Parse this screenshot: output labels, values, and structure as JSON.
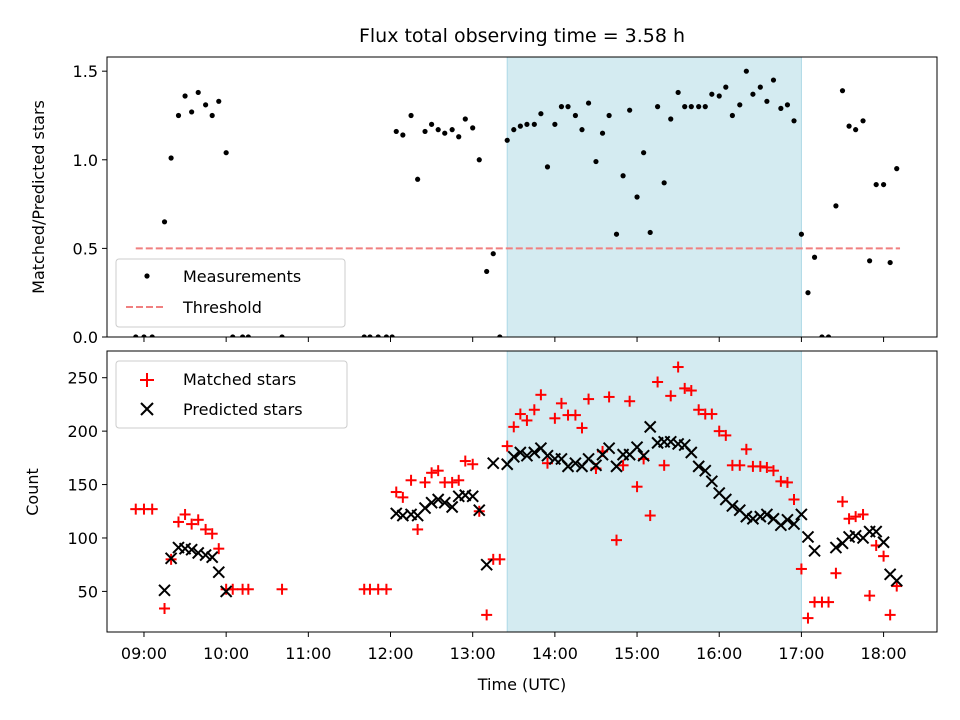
{
  "chart_data": {
    "type": "scatter",
    "title": "Flux total observing time = 3.58 h",
    "xlabel": "Time (UTC)",
    "x_tick_labels": [
      "09:00",
      "10:00",
      "11:00",
      "12:00",
      "13:00",
      "14:00",
      "15:00",
      "16:00",
      "17:00",
      "18:00"
    ],
    "x_tick_hours": [
      9,
      10,
      11,
      12,
      13,
      14,
      15,
      16,
      17,
      18
    ],
    "xlim": [
      8.55,
      18.65
    ],
    "highlight_span": [
      13.42,
      17.0
    ],
    "colors": {
      "highlight": "#d4ebf1",
      "threshold": "#f08080",
      "matched": "#ff0000",
      "predicted": "#000000",
      "measurement": "#000000"
    },
    "top": {
      "ylabel": "Matched/Predicted stars",
      "ylim": [
        0,
        1.58
      ],
      "y_ticks": [
        0.0,
        0.5,
        1.0,
        1.5
      ],
      "y_tick_labels": [
        "0.0",
        "0.5",
        "1.0",
        "1.5"
      ],
      "threshold": {
        "value": 0.5,
        "x_range": [
          8.9,
          18.2
        ]
      },
      "legend": {
        "position": "lower-left",
        "measurements_label": "Measurements",
        "threshold_label": "Threshold"
      },
      "measurements": [
        [
          8.9,
          0
        ],
        [
          9.0,
          0
        ],
        [
          9.1,
          0
        ],
        [
          9.25,
          0.65
        ],
        [
          9.33,
          1.01
        ],
        [
          9.42,
          1.25
        ],
        [
          9.5,
          1.36
        ],
        [
          9.58,
          1.27
        ],
        [
          9.66,
          1.38
        ],
        [
          9.75,
          1.31
        ],
        [
          9.83,
          1.25
        ],
        [
          9.91,
          1.33
        ],
        [
          10.0,
          1.04
        ],
        [
          10.08,
          0
        ],
        [
          10.2,
          0
        ],
        [
          10.27,
          0
        ],
        [
          10.68,
          0
        ],
        [
          11.68,
          0
        ],
        [
          11.75,
          0
        ],
        [
          11.85,
          0
        ],
        [
          11.95,
          0
        ],
        [
          12.02,
          0
        ],
        [
          12.07,
          1.16
        ],
        [
          12.15,
          1.14
        ],
        [
          12.25,
          1.25
        ],
        [
          12.33,
          0.89
        ],
        [
          12.42,
          1.16
        ],
        [
          12.5,
          1.2
        ],
        [
          12.58,
          1.17
        ],
        [
          12.66,
          1.15
        ],
        [
          12.75,
          1.17
        ],
        [
          12.83,
          1.13
        ],
        [
          12.91,
          1.23
        ],
        [
          13.0,
          1.18
        ],
        [
          13.08,
          1.0
        ],
        [
          13.17,
          0.37
        ],
        [
          13.25,
          0.47
        ],
        [
          13.33,
          0
        ],
        [
          13.42,
          1.11
        ],
        [
          13.5,
          1.17
        ],
        [
          13.58,
          1.19
        ],
        [
          13.66,
          1.2
        ],
        [
          13.75,
          1.2
        ],
        [
          13.83,
          1.26
        ],
        [
          13.91,
          0.96
        ],
        [
          14.0,
          1.2
        ],
        [
          14.08,
          1.3
        ],
        [
          14.16,
          1.3
        ],
        [
          14.25,
          1.25
        ],
        [
          14.33,
          1.17
        ],
        [
          14.41,
          1.32
        ],
        [
          14.5,
          0.99
        ],
        [
          14.58,
          1.15
        ],
        [
          14.66,
          1.25
        ],
        [
          14.75,
          0.58
        ],
        [
          14.83,
          0.91
        ],
        [
          14.91,
          1.28
        ],
        [
          15.0,
          0.79
        ],
        [
          15.08,
          1.04
        ],
        [
          15.16,
          0.59
        ],
        [
          15.25,
          1.3
        ],
        [
          15.33,
          0.87
        ],
        [
          15.41,
          1.23
        ],
        [
          15.5,
          1.38
        ],
        [
          15.58,
          1.3
        ],
        [
          15.66,
          1.3
        ],
        [
          15.75,
          1.3
        ],
        [
          15.83,
          1.3
        ],
        [
          15.91,
          1.37
        ],
        [
          16.0,
          1.36
        ],
        [
          16.08,
          1.41
        ],
        [
          16.16,
          1.25
        ],
        [
          16.25,
          1.31
        ],
        [
          16.33,
          1.5
        ],
        [
          16.41,
          1.37
        ],
        [
          16.5,
          1.41
        ],
        [
          16.58,
          1.33
        ],
        [
          16.66,
          1.45
        ],
        [
          16.75,
          1.29
        ],
        [
          16.83,
          1.31
        ],
        [
          16.91,
          1.22
        ],
        [
          17.0,
          0.58
        ],
        [
          17.08,
          0.25
        ],
        [
          17.16,
          0.45
        ],
        [
          17.25,
          0
        ],
        [
          17.33,
          0
        ],
        [
          17.42,
          0.74
        ],
        [
          17.5,
          1.39
        ],
        [
          17.58,
          1.19
        ],
        [
          17.66,
          1.17
        ],
        [
          17.75,
          1.22
        ],
        [
          17.83,
          0.43
        ],
        [
          17.91,
          0.86
        ],
        [
          18.0,
          0.86
        ],
        [
          18.08,
          0.42
        ],
        [
          18.16,
          0.95
        ]
      ]
    },
    "bottom": {
      "ylabel": "Count",
      "ylim": [
        12,
        275
      ],
      "y_ticks": [
        50,
        100,
        150,
        200,
        250
      ],
      "y_tick_labels": [
        "50",
        "100",
        "150",
        "200",
        "250"
      ],
      "legend": {
        "position": "upper-left",
        "matched_label": "Matched stars",
        "predicted_label": "Predicted stars"
      },
      "matched": [
        [
          8.9,
          127
        ],
        [
          9.0,
          127
        ],
        [
          9.1,
          127
        ],
        [
          9.25,
          34
        ],
        [
          9.33,
          80
        ],
        [
          9.42,
          115
        ],
        [
          9.5,
          122
        ],
        [
          9.58,
          113
        ],
        [
          9.66,
          117
        ],
        [
          9.75,
          108
        ],
        [
          9.83,
          104
        ],
        [
          9.91,
          90
        ],
        [
          10.0,
          52
        ],
        [
          10.08,
          52
        ],
        [
          10.2,
          52
        ],
        [
          10.27,
          52
        ],
        [
          10.68,
          52
        ],
        [
          11.68,
          52
        ],
        [
          11.75,
          52
        ],
        [
          11.85,
          52
        ],
        [
          11.95,
          52
        ],
        [
          12.07,
          143
        ],
        [
          12.15,
          138
        ],
        [
          12.25,
          154
        ],
        [
          12.33,
          108
        ],
        [
          12.42,
          152
        ],
        [
          12.5,
          161
        ],
        [
          12.58,
          163
        ],
        [
          12.66,
          152
        ],
        [
          12.75,
          152
        ],
        [
          12.83,
          154
        ],
        [
          12.91,
          172
        ],
        [
          13.0,
          169
        ],
        [
          13.08,
          125
        ],
        [
          13.17,
          28
        ],
        [
          13.25,
          80
        ],
        [
          13.33,
          80
        ],
        [
          13.42,
          186
        ],
        [
          13.5,
          204
        ],
        [
          13.58,
          216
        ],
        [
          13.66,
          210
        ],
        [
          13.75,
          220
        ],
        [
          13.83,
          234
        ],
        [
          13.91,
          170
        ],
        [
          14.0,
          212
        ],
        [
          14.08,
          226
        ],
        [
          14.16,
          215
        ],
        [
          14.25,
          215
        ],
        [
          14.33,
          203
        ],
        [
          14.41,
          230
        ],
        [
          14.5,
          165
        ],
        [
          14.58,
          181
        ],
        [
          14.66,
          232
        ],
        [
          14.75,
          98
        ],
        [
          14.83,
          168
        ],
        [
          14.91,
          228
        ],
        [
          15.0,
          148
        ],
        [
          15.08,
          174
        ],
        [
          15.16,
          121
        ],
        [
          15.25,
          246
        ],
        [
          15.33,
          168
        ],
        [
          15.41,
          233
        ],
        [
          15.5,
          260
        ],
        [
          15.58,
          240
        ],
        [
          15.66,
          238
        ],
        [
          15.75,
          220
        ],
        [
          15.83,
          216
        ],
        [
          15.91,
          216
        ],
        [
          16.0,
          200
        ],
        [
          16.08,
          196
        ],
        [
          16.16,
          168
        ],
        [
          16.25,
          168
        ],
        [
          16.33,
          183
        ],
        [
          16.41,
          167
        ],
        [
          16.5,
          167
        ],
        [
          16.58,
          166
        ],
        [
          16.66,
          163
        ],
        [
          16.75,
          153
        ],
        [
          16.83,
          152
        ],
        [
          16.91,
          136
        ],
        [
          17.0,
          71
        ],
        [
          17.08,
          25
        ],
        [
          17.16,
          40
        ],
        [
          17.25,
          40
        ],
        [
          17.33,
          40
        ],
        [
          17.42,
          67
        ],
        [
          17.5,
          134
        ],
        [
          17.58,
          118
        ],
        [
          17.66,
          120
        ],
        [
          17.75,
          122
        ],
        [
          17.83,
          46
        ],
        [
          17.91,
          93
        ],
        [
          18.0,
          83
        ],
        [
          18.08,
          28
        ],
        [
          18.16,
          55
        ]
      ],
      "predicted": [
        [
          9.25,
          51
        ],
        [
          9.33,
          81
        ],
        [
          9.42,
          91
        ],
        [
          9.5,
          90
        ],
        [
          9.58,
          89
        ],
        [
          9.66,
          86
        ],
        [
          9.75,
          84
        ],
        [
          9.83,
          82
        ],
        [
          9.91,
          68
        ],
        [
          10.0,
          50
        ],
        [
          12.07,
          123
        ],
        [
          12.15,
          121
        ],
        [
          12.25,
          122
        ],
        [
          12.33,
          121
        ],
        [
          12.42,
          128
        ],
        [
          12.5,
          133
        ],
        [
          12.58,
          136
        ],
        [
          12.66,
          133
        ],
        [
          12.75,
          129
        ],
        [
          12.83,
          139
        ],
        [
          12.91,
          140
        ],
        [
          13.0,
          139
        ],
        [
          13.08,
          126
        ],
        [
          13.17,
          75
        ],
        [
          13.25,
          170
        ],
        [
          13.42,
          169
        ],
        [
          13.5,
          176
        ],
        [
          13.58,
          180
        ],
        [
          13.66,
          177
        ],
        [
          13.75,
          180
        ],
        [
          13.83,
          184
        ],
        [
          13.91,
          177
        ],
        [
          14.0,
          174
        ],
        [
          14.08,
          174
        ],
        [
          14.16,
          167
        ],
        [
          14.25,
          170
        ],
        [
          14.33,
          167
        ],
        [
          14.41,
          174
        ],
        [
          14.5,
          168
        ],
        [
          14.58,
          178
        ],
        [
          14.66,
          184
        ],
        [
          14.75,
          167
        ],
        [
          14.83,
          178
        ],
        [
          14.91,
          178
        ],
        [
          15.0,
          185
        ],
        [
          15.08,
          177
        ],
        [
          15.16,
          204
        ],
        [
          15.25,
          189
        ],
        [
          15.33,
          190
        ],
        [
          15.41,
          190
        ],
        [
          15.5,
          188
        ],
        [
          15.58,
          187
        ],
        [
          15.66,
          180
        ],
        [
          15.75,
          167
        ],
        [
          15.83,
          163
        ],
        [
          15.91,
          153
        ],
        [
          16.0,
          142
        ],
        [
          16.08,
          136
        ],
        [
          16.16,
          130
        ],
        [
          16.25,
          126
        ],
        [
          16.33,
          120
        ],
        [
          16.41,
          118
        ],
        [
          16.5,
          120
        ],
        [
          16.58,
          122
        ],
        [
          16.66,
          118
        ],
        [
          16.75,
          112
        ],
        [
          16.83,
          117
        ],
        [
          16.91,
          113
        ],
        [
          17.0,
          122
        ],
        [
          17.08,
          101
        ],
        [
          17.16,
          88
        ],
        [
          17.42,
          91
        ],
        [
          17.5,
          95
        ],
        [
          17.58,
          101
        ],
        [
          17.66,
          102
        ],
        [
          17.75,
          100
        ],
        [
          17.83,
          106
        ],
        [
          17.91,
          106
        ],
        [
          18.0,
          96
        ],
        [
          18.08,
          66
        ],
        [
          18.16,
          60
        ]
      ]
    }
  }
}
